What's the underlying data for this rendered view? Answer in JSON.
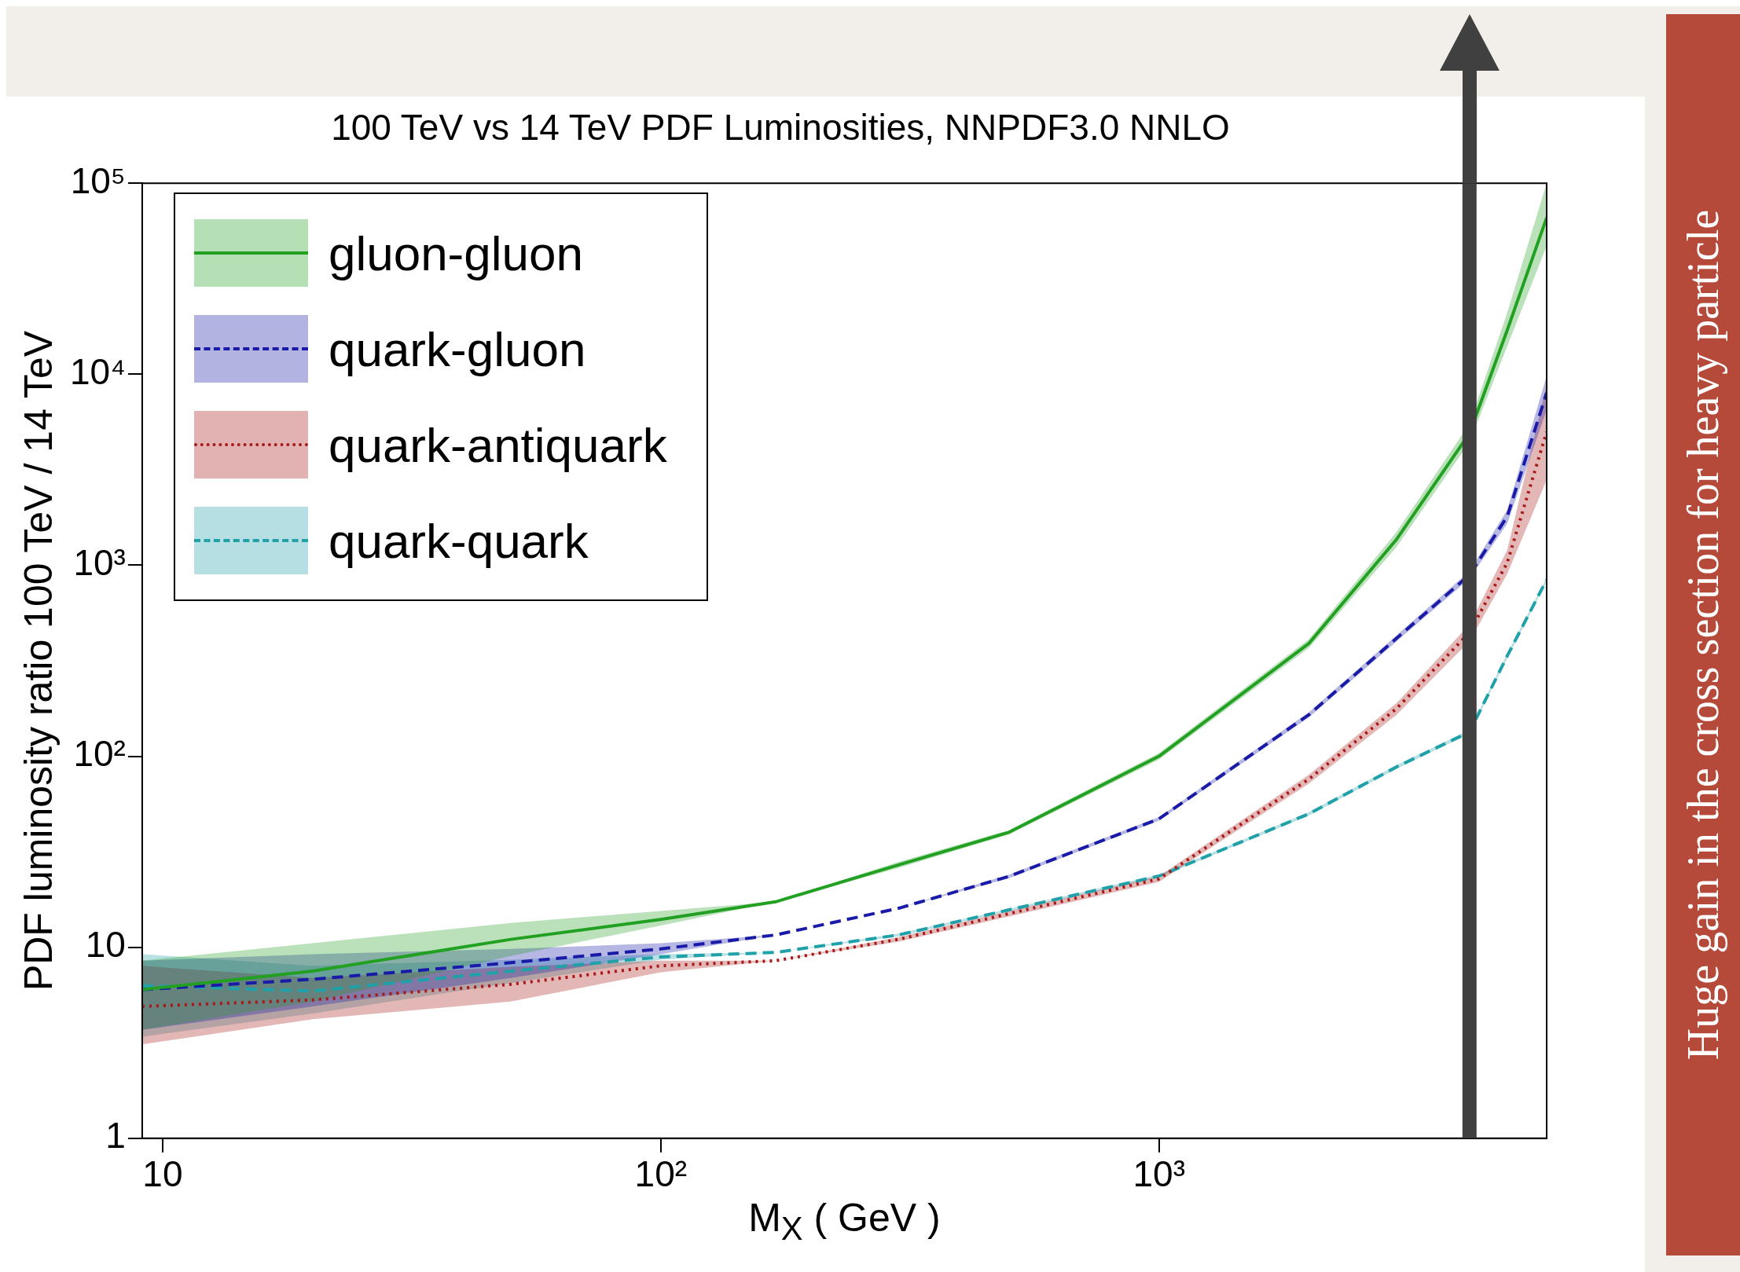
{
  "chart_data": {
    "type": "line",
    "title": "100 TeV vs 14 TeV PDF Luminosities, NNPDF3.0 NNLO",
    "xlabel": "M$_{X}$ ( GeV )",
    "ylabel": "PDF luminosity ratio 100 TeV / 14 TeV",
    "log": "xy",
    "grid": false,
    "legend": "top left",
    "x": [
      9.1,
      20,
      50,
      100,
      170,
      300,
      500,
      1000,
      2000,
      3000,
      4200,
      5000,
      6000
    ],
    "xlim": [
      9.1,
      6000
    ],
    "ylim": [
      1,
      100000
    ],
    "xticks": [
      {
        "value": 10,
        "label": "10"
      },
      {
        "value": 100,
        "label": "10²"
      },
      {
        "value": 1000,
        "label": "10³"
      }
    ],
    "yticks": [
      1,
      10,
      {
        "value": 100,
        "label": "10²"
      },
      {
        "value": 1000,
        "label": "10³"
      },
      {
        "value": 10000,
        "label": "10⁴"
      },
      {
        "value": 100000,
        "label": "10⁵"
      }
    ],
    "series": [
      {
        "name": "gluon-gluon",
        "color": "#22a022",
        "line_style": "solid",
        "values": [
          6,
          7.5,
          11,
          14,
          17.3,
          27,
          40,
          100,
          390,
          1370,
          4900,
          17000,
          66000
        ],
        "lower": [
          3.7,
          5.2,
          9,
          13,
          17.3,
          26,
          39,
          96,
          370,
          1250,
          4400,
          14000,
          47000
        ],
        "upper": [
          8.5,
          10.5,
          13.4,
          15.5,
          17.3,
          28,
          41,
          104,
          410,
          1500,
          5500,
          21000,
          100000
        ]
      },
      {
        "name": "quark-gluon",
        "color": "#1a1aa8",
        "line_style": "dashed",
        "values": [
          6,
          6.8,
          8.3,
          9.8,
          11.6,
          16,
          23.5,
          47,
          165,
          415,
          890,
          1800,
          8000
        ],
        "lower": [
          3.7,
          4.9,
          6.9,
          9.2,
          11.6,
          16,
          23,
          46,
          160,
          400,
          850,
          1650,
          6500
        ],
        "upper": [
          8.5,
          9.2,
          9.8,
          10.5,
          11.6,
          16,
          24,
          48,
          170,
          430,
          930,
          1950,
          9800
        ]
      },
      {
        "name": "quark-antiquark",
        "color": "#a81818",
        "line_style": "dotted",
        "values": [
          4.9,
          5.3,
          6.4,
          8,
          8.5,
          11,
          15,
          22.8,
          76,
          178,
          445,
          1030,
          5000
        ],
        "lower": [
          3.1,
          4.2,
          5.2,
          7.4,
          8.5,
          10.7,
          14.5,
          22,
          72,
          165,
          400,
          900,
          2800
        ],
        "upper": [
          8,
          6.9,
          7.9,
          8.5,
          8.5,
          11.3,
          15.5,
          23.6,
          80,
          190,
          490,
          1200,
          8800
        ]
      },
      {
        "name": "quark-quark",
        "color": "#20a0a8",
        "line_style": "dashed",
        "values": [
          6.3,
          5.9,
          7.5,
          8.9,
          9.4,
          11.6,
          15.7,
          23.6,
          50,
          88,
          134,
          335,
          840
        ],
        "lower": [
          3.4,
          4.5,
          6.5,
          8.6,
          9.4,
          11.4,
          15.5,
          23.2,
          49,
          86,
          131,
          325,
          820
        ],
        "upper": [
          9.2,
          8,
          8.6,
          9.2,
          9.4,
          11.8,
          15.9,
          24,
          51,
          90,
          137,
          345,
          860
        ]
      }
    ],
    "ref_lines": [
      {
        "axis": "x",
        "value": 4200,
        "color": "#404040"
      }
    ],
    "annotations": [
      "Huge gain in the cross section for heavy particle"
    ]
  }
}
